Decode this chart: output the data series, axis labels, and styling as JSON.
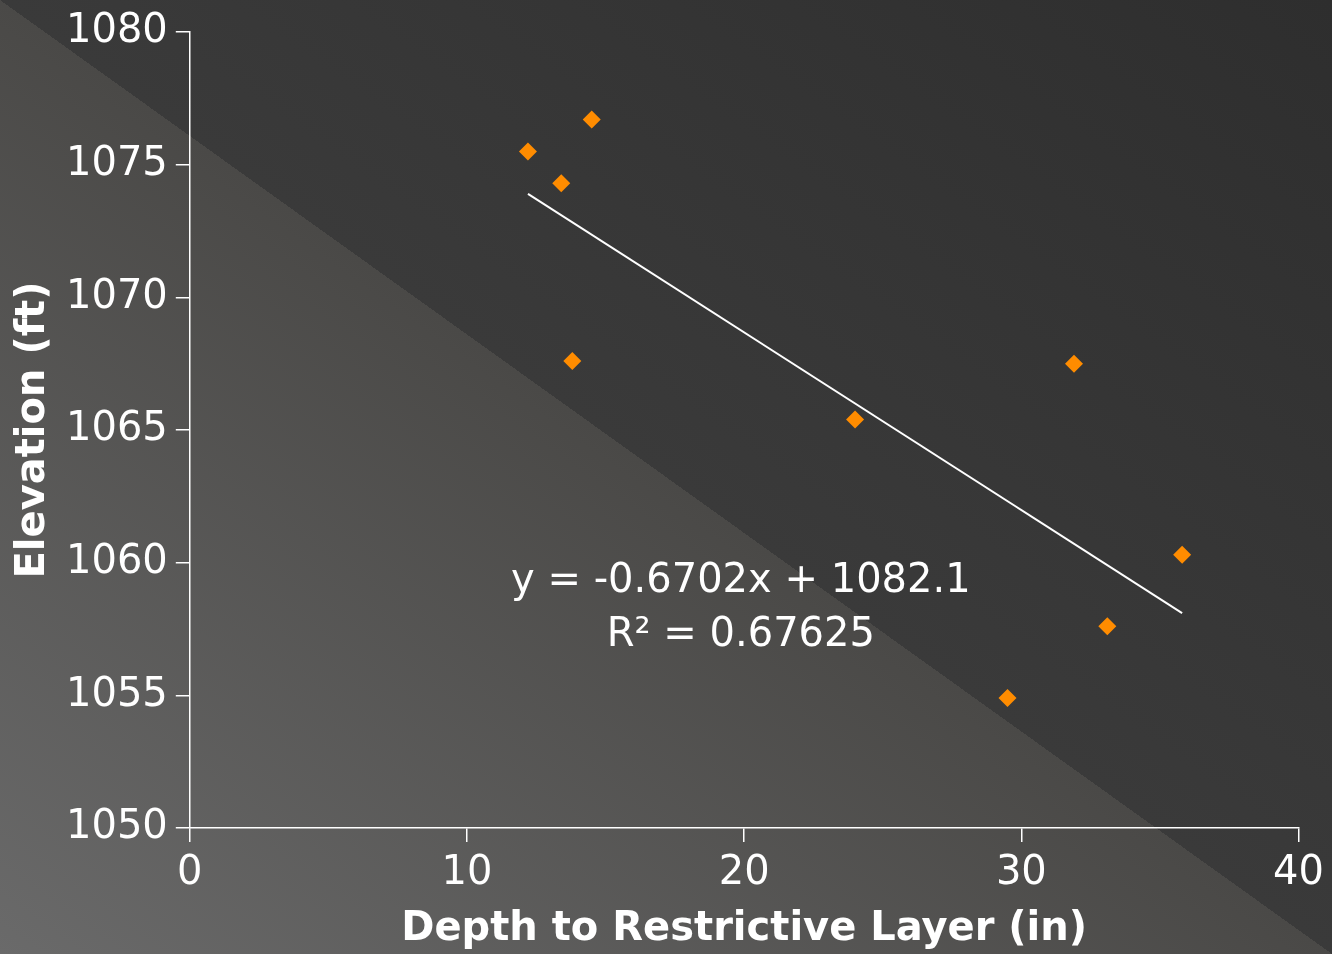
{
  "chart_data": {
    "type": "scatter",
    "xlabel": "Depth to Restrictive Layer (in)",
    "ylabel": "Elevation (ft)",
    "xlim": [
      0,
      40
    ],
    "xticks": [
      0,
      10,
      20,
      30,
      40
    ],
    "ylim": [
      1050,
      1080
    ],
    "yticks": [
      1050,
      1055,
      1060,
      1065,
      1070,
      1075,
      1080
    ],
    "grid": false,
    "legend": false,
    "series": [
      {
        "type": "scatter",
        "color": "#ff8c00",
        "marker": "diamond",
        "x": [
          12.2,
          13.4,
          14.5,
          13.8,
          24.0,
          31.9,
          35.8,
          33.1,
          29.5
        ],
        "values": [
          1075.5,
          1074.3,
          1076.7,
          1067.6,
          1065.4,
          1067.5,
          1060.3,
          1057.6,
          1054.9
        ]
      },
      {
        "type": "line",
        "color": "#ffffff",
        "marker": "none",
        "line_style": "solid",
        "x": [
          12.2,
          35.8
        ],
        "values": [
          1073.9,
          1058.1
        ]
      }
    ],
    "annotations": [
      "y = -0.6702x + 1082.1",
      "R² = 0.67625"
    ]
  }
}
